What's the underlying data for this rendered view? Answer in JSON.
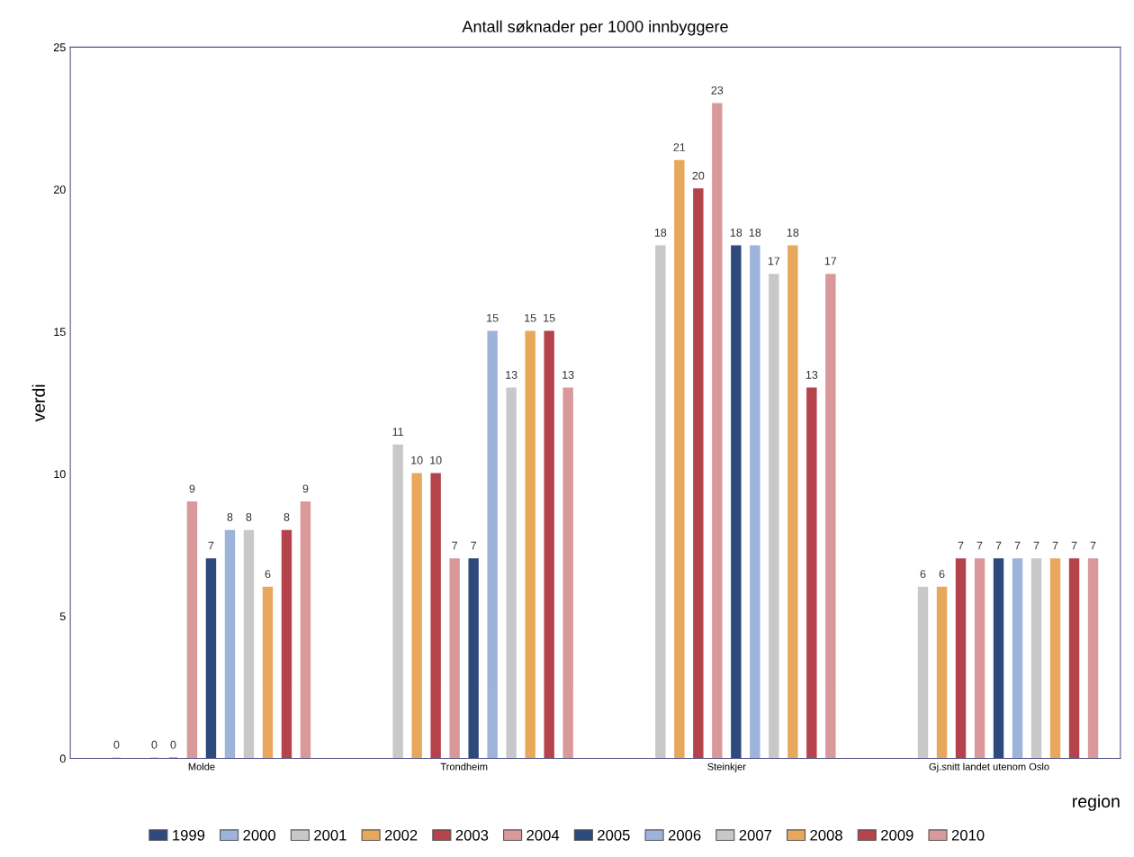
{
  "chart_data": {
    "type": "bar",
    "title": "Antall søknader per 1000 innbyggere",
    "xlabel": "region",
    "ylabel": "verdi",
    "categories": [
      "Molde",
      "Trondheim",
      "Steinkjer",
      "Gj.snitt landet utenom Oslo"
    ],
    "series": [
      {
        "name": "1999",
        "color": "#2e4a7d",
        "values": [
          null,
          null,
          null,
          null
        ]
      },
      {
        "name": "2000",
        "color": "#9db3db",
        "values": [
          0,
          null,
          null,
          null
        ]
      },
      {
        "name": "2001",
        "color": "#c8c8c8",
        "values": [
          null,
          11,
          18,
          6
        ]
      },
      {
        "name": "2002",
        "color": "#e8a85c",
        "values": [
          0,
          10,
          21,
          6
        ]
      },
      {
        "name": "2003",
        "color": "#b5434b",
        "values": [
          0,
          10,
          20,
          7
        ]
      },
      {
        "name": "2004",
        "color": "#d9999b",
        "values": [
          9,
          7,
          23,
          7
        ]
      },
      {
        "name": "2005",
        "color": "#2e4a7d",
        "values": [
          7,
          7,
          18,
          7
        ]
      },
      {
        "name": "2006",
        "color": "#9db3db",
        "values": [
          8,
          15,
          18,
          7
        ]
      },
      {
        "name": "2007",
        "color": "#c8c8c8",
        "values": [
          8,
          13,
          17,
          7
        ]
      },
      {
        "name": "2008",
        "color": "#e8a85c",
        "values": [
          6,
          15,
          18,
          7
        ]
      },
      {
        "name": "2009",
        "color": "#b5434b",
        "values": [
          8,
          15,
          13,
          7
        ]
      },
      {
        "name": "2010",
        "color": "#d9999b",
        "values": [
          9,
          13,
          17,
          7
        ]
      }
    ],
    "ylim": [
      0,
      25
    ],
    "yticks": [
      0,
      5,
      10,
      15,
      20,
      25
    ],
    "grid": false,
    "legend": "bottom",
    "data_labels": true
  }
}
